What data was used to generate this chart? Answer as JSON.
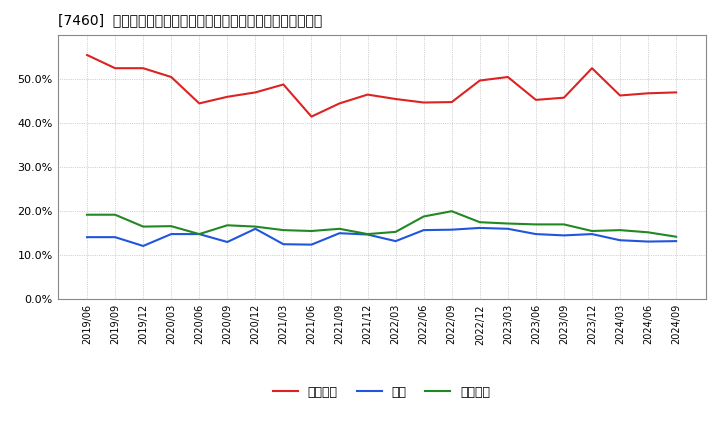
{
  "title": "[7460]  売上債権、在庫、買入債務の総資産に対する比率の推移",
  "dates": [
    "2019/06",
    "2019/09",
    "2019/12",
    "2020/03",
    "2020/06",
    "2020/09",
    "2020/12",
    "2021/03",
    "2021/06",
    "2021/09",
    "2021/12",
    "2022/03",
    "2022/06",
    "2022/09",
    "2022/12",
    "2023/03",
    "2023/06",
    "2023/09",
    "2023/12",
    "2024/03",
    "2024/06",
    "2024/09"
  ],
  "uriage": [
    0.555,
    0.525,
    0.525,
    0.505,
    0.445,
    0.46,
    0.47,
    0.488,
    0.415,
    0.445,
    0.465,
    0.455,
    0.447,
    0.448,
    0.497,
    0.505,
    0.453,
    0.458,
    0.525,
    0.463,
    0.468,
    0.47
  ],
  "zaiko": [
    0.141,
    0.141,
    0.121,
    0.148,
    0.148,
    0.13,
    0.16,
    0.125,
    0.124,
    0.15,
    0.147,
    0.132,
    0.157,
    0.158,
    0.162,
    0.16,
    0.148,
    0.145,
    0.148,
    0.134,
    0.131,
    0.132
  ],
  "kaiire": [
    0.192,
    0.192,
    0.165,
    0.166,
    0.148,
    0.168,
    0.165,
    0.157,
    0.155,
    0.16,
    0.148,
    0.153,
    0.188,
    0.2,
    0.175,
    0.172,
    0.17,
    0.17,
    0.155,
    0.157,
    0.152,
    0.142
  ],
  "uriage_color": "#dd2222",
  "zaiko_color": "#2255dd",
  "kaiire_color": "#228822",
  "legend_uriage": "売上債権",
  "legend_zaiko": "在庫",
  "legend_kaiire": "買入債務",
  "ylim": [
    0.0,
    0.6
  ],
  "yticks": [
    0.0,
    0.1,
    0.2,
    0.3,
    0.4,
    0.5
  ],
  "background_color": "#ffffff",
  "plot_bg_color": "#ffffff",
  "grid_color": "#aaaaaa",
  "title_fontsize": 11
}
